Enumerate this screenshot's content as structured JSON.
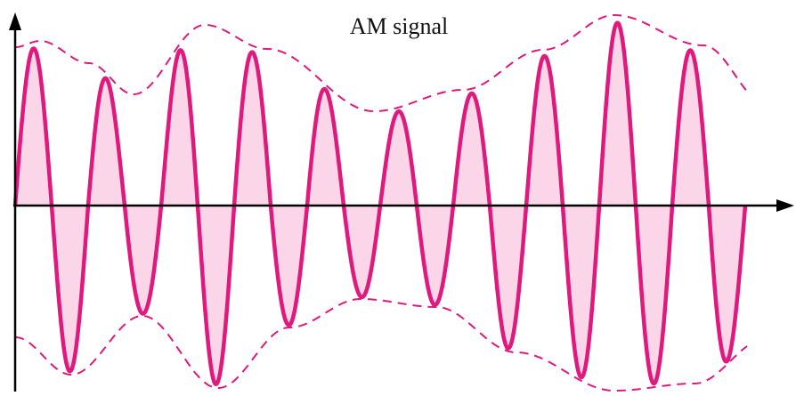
{
  "title": "AM signal"
}
